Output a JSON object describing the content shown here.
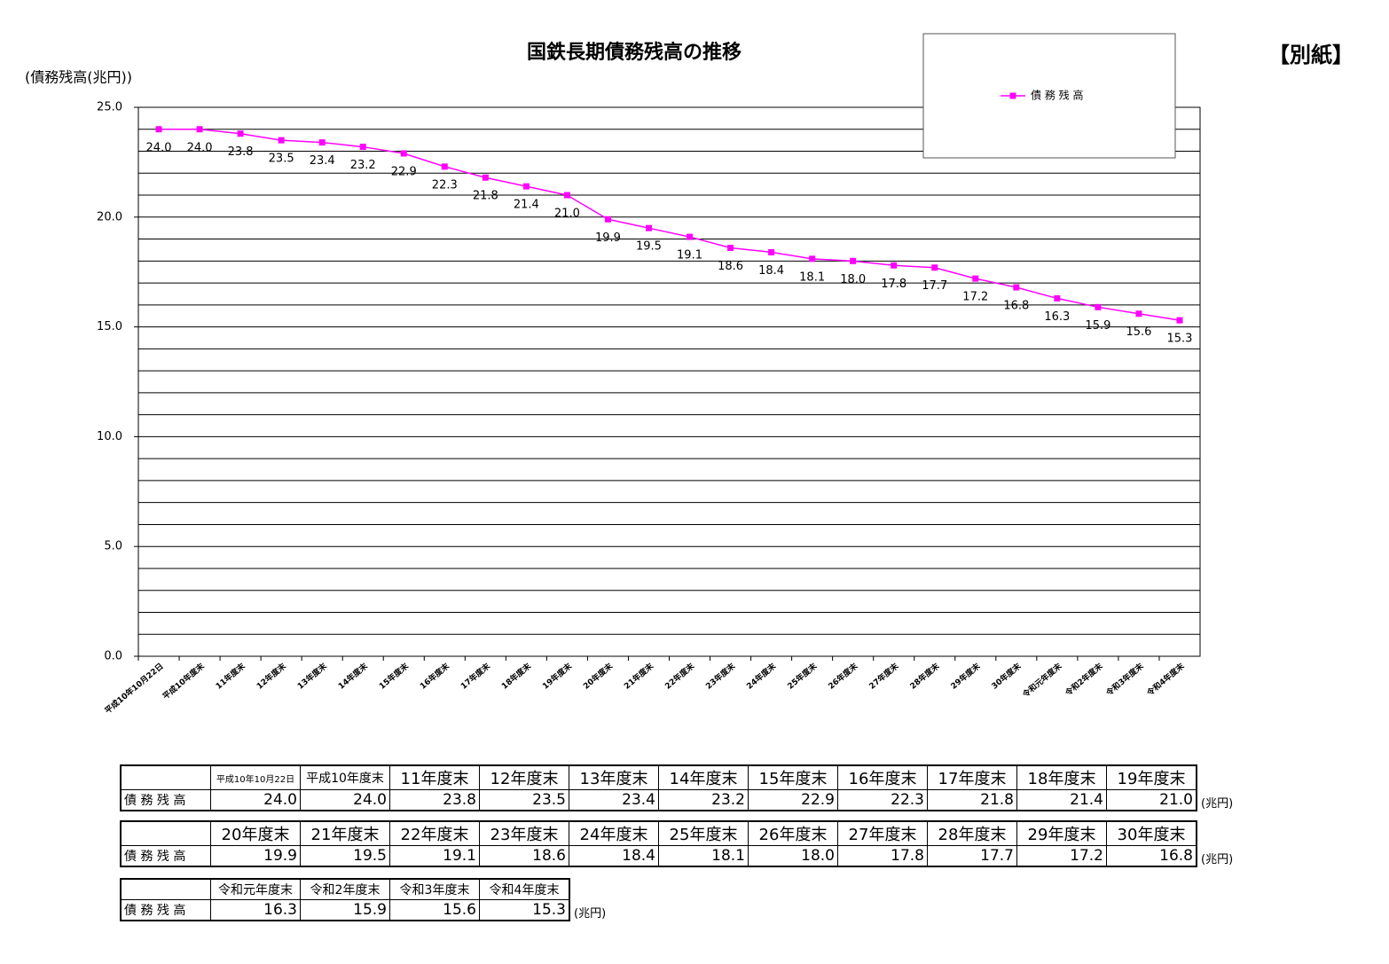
{
  "chart_data": {
    "type": "line",
    "title": "国鉄長期債務残高の推移",
    "y_label": "(債務残高(兆円))",
    "categories": [
      "平成10年10月22日",
      "平成10年度末",
      "11年度末",
      "12年度末",
      "13年度末",
      "14年度末",
      "15年度末",
      "16年度末",
      "17年度末",
      "18年度末",
      "19年度末",
      "20年度末",
      "21年度末",
      "22年度末",
      "23年度末",
      "24年度末",
      "25年度末",
      "26年度末",
      "27年度末",
      "28年度末",
      "29年度末",
      "30年度末",
      "令和元年度末",
      "令和2年度末",
      "令和3年度末",
      "令和4年度末"
    ],
    "series": [
      {
        "name": "債 務 残 高",
        "color": "#ff00ff",
        "values": [
          24.0,
          24.0,
          23.8,
          23.5,
          23.4,
          23.2,
          22.9,
          22.3,
          21.8,
          21.4,
          21.0,
          19.9,
          19.5,
          19.1,
          18.6,
          18.4,
          18.1,
          18.0,
          17.8,
          17.7,
          17.2,
          16.8,
          16.3,
          15.9,
          15.6,
          15.3
        ],
        "value_labels": [
          "24.0",
          "24.0",
          "23.8",
          "23.5",
          "23.4",
          "23.2",
          "22.9",
          "22.3",
          "21.8",
          "21.4",
          "21.0",
          "19.9",
          "19.5",
          "19.1",
          "18.6",
          "18.4",
          "18.1",
          "18.0",
          "17.8",
          "17.7",
          "17.2",
          "16.8",
          "16.3",
          "15.9",
          "15.6",
          "15.3"
        ]
      }
    ],
    "ylim": [
      0,
      25
    ],
    "yticks": [
      {
        "value": 0,
        "label": "0.0"
      },
      {
        "value": 5,
        "label": "5.0"
      },
      {
        "value": 10,
        "label": "10.0"
      },
      {
        "value": 15,
        "label": "15.0"
      },
      {
        "value": 20,
        "label": "20.0"
      },
      {
        "value": 25,
        "label": "25.0"
      }
    ],
    "grid": true,
    "grid_step": 1,
    "legend": "top-right"
  },
  "corner_label": "【別紙】",
  "tables": [
    {
      "headers": [
        "平成10年10月22日",
        "平成10年度末",
        "11年度末",
        "12年度末",
        "13年度末",
        "14年度末",
        "15年度末",
        "16年度末",
        "17年度末",
        "18年度末",
        "19年度末"
      ],
      "row_label": "債 務 残 高",
      "values": [
        "24.0",
        "24.0",
        "23.8",
        "23.5",
        "23.4",
        "23.2",
        "22.9",
        "22.3",
        "21.8",
        "21.4",
        "21.0"
      ],
      "unit": "(兆円)"
    },
    {
      "headers": [
        "20年度末",
        "21年度末",
        "22年度末",
        "23年度末",
        "24年度末",
        "25年度末",
        "26年度末",
        "27年度末",
        "28年度末",
        "29年度末",
        "30年度末"
      ],
      "row_label": "債 務 残 高",
      "values": [
        "19.9",
        "19.5",
        "19.1",
        "18.6",
        "18.4",
        "18.1",
        "18.0",
        "17.8",
        "17.7",
        "17.2",
        "16.8"
      ],
      "unit": "(兆円)"
    },
    {
      "headers": [
        "令和元年度末",
        "令和2年度末",
        "令和3年度末",
        "令和4年度末"
      ],
      "row_label": "債 務 残 高",
      "values": [
        "16.3",
        "15.9",
        "15.6",
        "15.3"
      ],
      "unit": "(兆円)"
    }
  ]
}
